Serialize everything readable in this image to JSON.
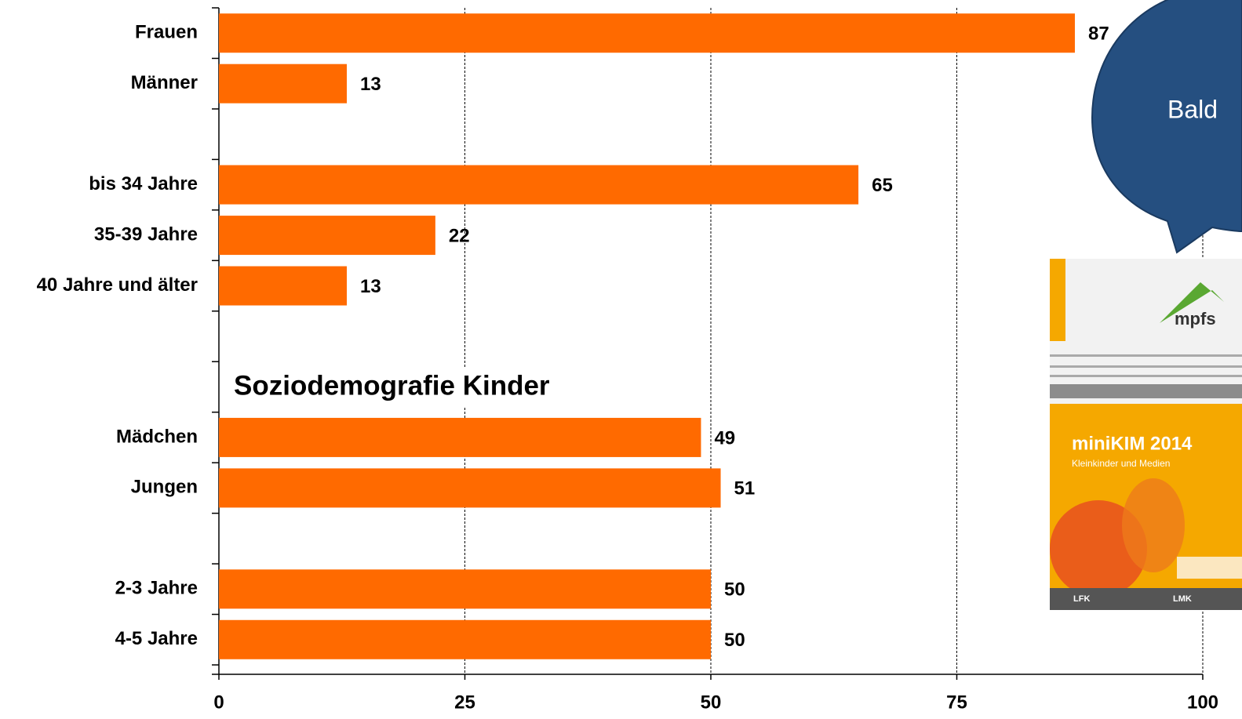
{
  "chart_data": {
    "type": "bar",
    "orientation": "horizontal",
    "categories": [
      "Frauen",
      "Männer",
      null,
      "bis 34 Jahre",
      "35-39 Jahre",
      "40 Jahre und älter",
      null,
      null,
      "Mädchen",
      "Jungen",
      null,
      "2-3 Jahre",
      "4-5 Jahre"
    ],
    "values": [
      87,
      13,
      null,
      65,
      22,
      13,
      null,
      null,
      49,
      51,
      null,
      50,
      50
    ],
    "color": "#ff6a00",
    "xlim": [
      0,
      100
    ],
    "xticks": [
      0,
      25,
      50,
      75,
      100
    ],
    "grid": true,
    "annotation": "Soziodemografie Kinder"
  },
  "callout": {
    "text": "Bald"
  },
  "cover": {
    "logo": "mpfs",
    "title": "miniKIM 2014",
    "subtitle": "Kleinkinder und Medien",
    "publishers": [
      "LFK",
      "LMK"
    ]
  }
}
